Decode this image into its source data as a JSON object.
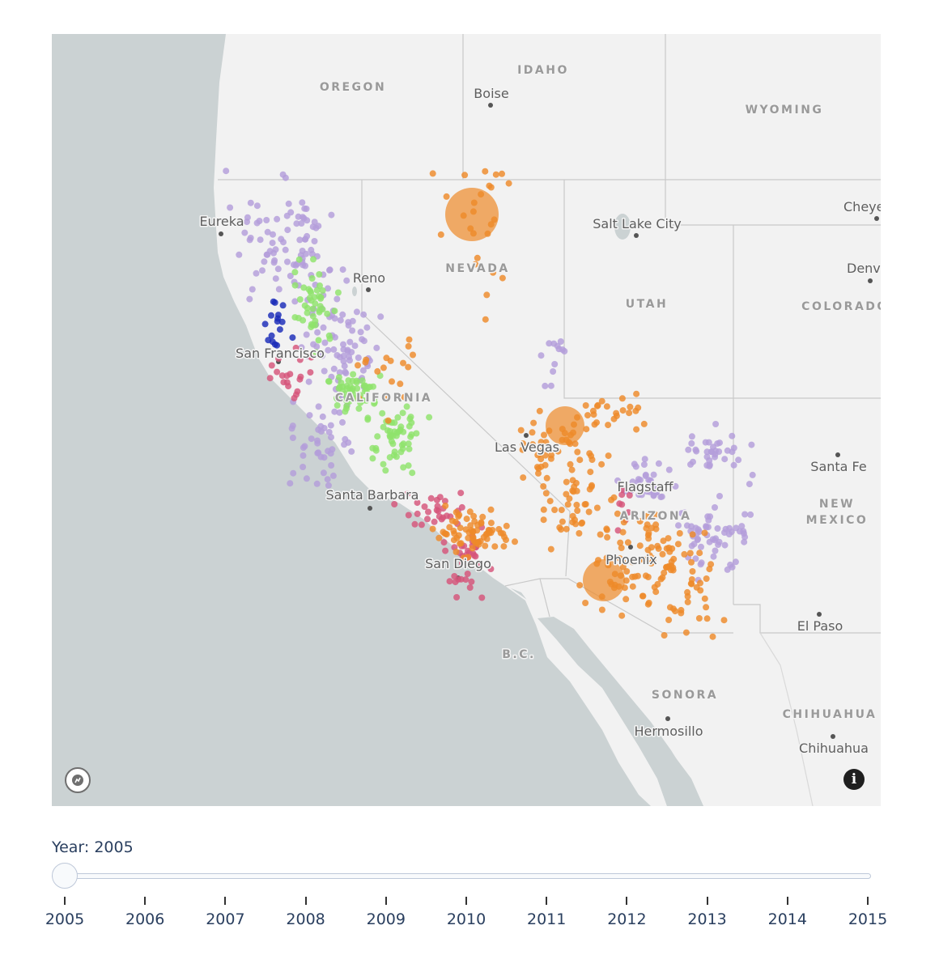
{
  "map": {
    "base_color": "#cbd2d3",
    "land_color": "#f2f2f2",
    "state_labels": [
      "OREGON",
      "IDAHO",
      "WYOMING",
      "NEVADA",
      "UTAH",
      "COLORADO",
      "CALIFORNIA",
      "ARIZONA",
      "NEW MEXICO",
      "B.C.",
      "SONORA",
      "CHIHUAHUA"
    ],
    "city_labels": [
      "Boise",
      "Eureka",
      "Salt Lake City",
      "Cheyenne",
      "Reno",
      "Denver",
      "San Francisco",
      "Las Vegas",
      "Santa Fe",
      "Flagstaff",
      "Santa Barbara",
      "San Diego",
      "Phoenix",
      "El Paso",
      "Hermosillo",
      "Chihuahua"
    ],
    "logo_icon": "mapbox-logo-icon",
    "info_icon": "info-icon",
    "colors": {
      "lavender": "#b39ddb",
      "green": "#8fe36b",
      "dark_blue": "#1a2bb8",
      "pink": "#d6547a",
      "orange": "#ee8a2a"
    }
  },
  "slider": {
    "prefix": "Year: ",
    "current": "2005",
    "label": "Year: 2005",
    "years": [
      "2005",
      "2006",
      "2007",
      "2008",
      "2009",
      "2010",
      "2011",
      "2012",
      "2013",
      "2014",
      "2015"
    ]
  }
}
